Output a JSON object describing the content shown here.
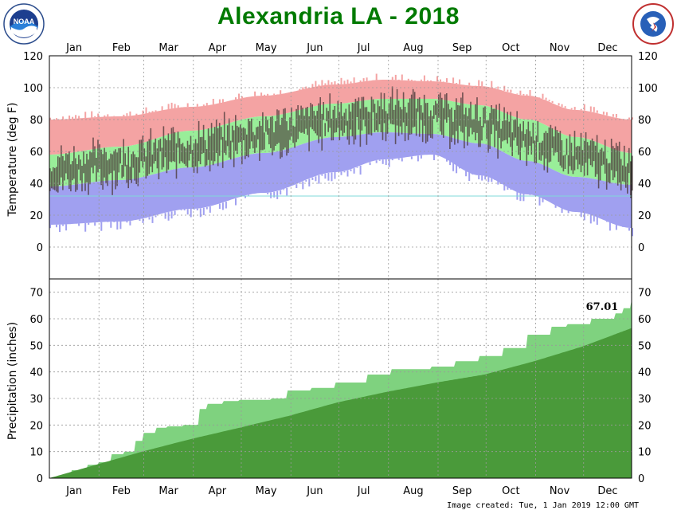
{
  "page": {
    "title": "Alexandria LA - 2018",
    "footer": "Image created: Tue, 1 Jan 2019 12:00 GMT",
    "left_logo_text": "NOAA",
    "right_logo_text": "NATIONAL WEATHER SERVICE"
  },
  "colors": {
    "title": "#007a00",
    "record_high_band": "#f4a3a3",
    "normal_band": "#99ee99",
    "record_low_band": "#a0a0f0",
    "actual_bar": "#4b3a3a",
    "freezing_line": "#7fd8d8",
    "precip_normal": "#4a9a3a",
    "precip_actual": "#7fd27f"
  },
  "chart_data": [
    {
      "type": "bar",
      "title": "Temperature",
      "ylabel": "Temperature (deg F)",
      "ylim": [
        -20,
        120
      ],
      "yticks": [
        0,
        20,
        40,
        60,
        80,
        100,
        120
      ],
      "months": [
        "Jan",
        "Feb",
        "Mar",
        "Apr",
        "May",
        "Jun",
        "Jul",
        "Aug",
        "Sep",
        "Oct",
        "Nov",
        "Dec"
      ],
      "freezing_line": 32,
      "series": [
        {
          "name": "Normal High",
          "points": [
            [
              1,
              58
            ],
            [
              45,
              63
            ],
            [
              90,
              73
            ],
            [
              135,
              82
            ],
            [
              180,
              90
            ],
            [
              210,
              93
            ],
            [
              240,
              93
            ],
            [
              270,
              89
            ],
            [
              300,
              80
            ],
            [
              330,
              69
            ],
            [
              365,
              59
            ]
          ]
        },
        {
          "name": "Normal Low",
          "points": [
            [
              1,
              38
            ],
            [
              45,
              42
            ],
            [
              90,
              50
            ],
            [
              135,
              59
            ],
            [
              180,
              69
            ],
            [
              210,
              72
            ],
            [
              240,
              71
            ],
            [
              270,
              65
            ],
            [
              300,
              54
            ],
            [
              330,
              44
            ],
            [
              365,
              39
            ]
          ]
        },
        {
          "name": "Record High",
          "points": [
            [
              1,
              80
            ],
            [
              45,
              82
            ],
            [
              90,
              88
            ],
            [
              135,
              95
            ],
            [
              180,
              102
            ],
            [
              210,
              105
            ],
            [
              240,
              104
            ],
            [
              270,
              101
            ],
            [
              300,
              95
            ],
            [
              330,
              86
            ],
            [
              365,
              80
            ]
          ]
        },
        {
          "name": "Record Low",
          "points": [
            [
              1,
              14
            ],
            [
              45,
              16
            ],
            [
              90,
              24
            ],
            [
              135,
              34
            ],
            [
              180,
              47
            ],
            [
              210,
              55
            ],
            [
              240,
              58
            ],
            [
              270,
              45
            ],
            [
              300,
              33
            ],
            [
              330,
              22
            ],
            [
              365,
              12
            ]
          ]
        }
      ]
    },
    {
      "type": "area",
      "title": "Precipitation",
      "ylabel": "Precipitation (inches)",
      "ylim": [
        0,
        75
      ],
      "yticks": [
        0,
        10,
        20,
        30,
        40,
        50,
        60,
        70
      ],
      "annotation": "67.01",
      "months": [
        "Jan",
        "Feb",
        "Mar",
        "Apr",
        "May",
        "Jun",
        "Jul",
        "Aug",
        "Sep",
        "Oct",
        "Nov",
        "Dec"
      ],
      "series": [
        {
          "name": "Actual",
          "points": [
            [
              1,
              0
            ],
            [
              8,
              0.5
            ],
            [
              15,
              3
            ],
            [
              25,
              5
            ],
            [
              32,
              6
            ],
            [
              40,
              9
            ],
            [
              48,
              10
            ],
            [
              55,
              14
            ],
            [
              60,
              17
            ],
            [
              68,
              19
            ],
            [
              75,
              19.5
            ],
            [
              85,
              20
            ],
            [
              95,
              26
            ],
            [
              100,
              28
            ],
            [
              110,
              29
            ],
            [
              120,
              29.5
            ],
            [
              140,
              30
            ],
            [
              150,
              33
            ],
            [
              165,
              34
            ],
            [
              180,
              36
            ],
            [
              200,
              39
            ],
            [
              215,
              41
            ],
            [
              240,
              42
            ],
            [
              255,
              44
            ],
            [
              270,
              46
            ],
            [
              285,
              49
            ],
            [
              300,
              54
            ],
            [
              315,
              57
            ],
            [
              325,
              58
            ],
            [
              340,
              60
            ],
            [
              355,
              62
            ],
            [
              360,
              64
            ],
            [
              365,
              67.01
            ]
          ]
        },
        {
          "name": "Normal",
          "points": [
            [
              1,
              0
            ],
            [
              31,
              5.2
            ],
            [
              59,
              10
            ],
            [
              90,
              14.8
            ],
            [
              120,
              19
            ],
            [
              151,
              23.5
            ],
            [
              181,
              28.5
            ],
            [
              212,
              32.5
            ],
            [
              243,
              36
            ],
            [
              273,
              39
            ],
            [
              304,
              44
            ],
            [
              334,
              49.5
            ],
            [
              365,
              56.5
            ]
          ]
        }
      ]
    }
  ]
}
